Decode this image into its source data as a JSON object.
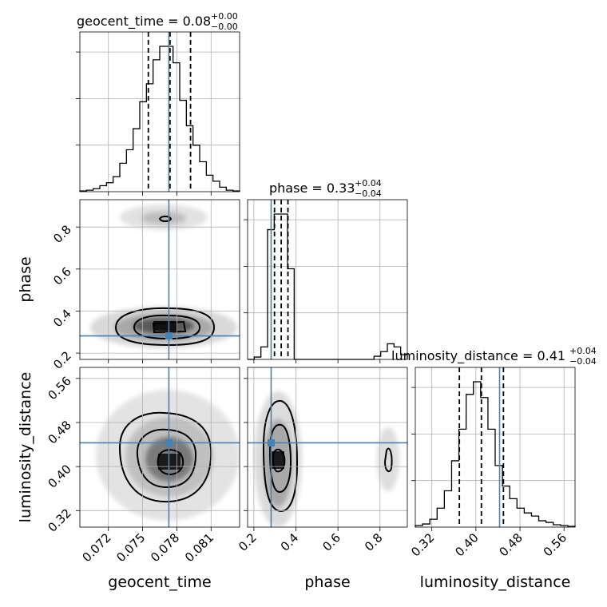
{
  "chart_data": {
    "type": "corner",
    "parameters": [
      "geocent_time",
      "phase",
      "luminosity_distance"
    ],
    "truth_color": "#4682b4",
    "truths": {
      "geocent_time": 0.0773,
      "phase": 0.282,
      "luminosity_distance": 0.443
    },
    "panel_titles": [
      {
        "label": "geocent_time = 0.08",
        "sup": "+0.00",
        "sub": "−0.00"
      },
      {
        "label": "phase = 0.33",
        "sup": "+0.04",
        "sub": "−0.04"
      },
      {
        "label": "luminosity_distance = 0.41",
        "sup": "+0.04",
        "sub": "−0.04"
      }
    ],
    "axes": {
      "geocent_time": {
        "range": [
          0.0695,
          0.0835
        ],
        "ticks": [
          0.072,
          0.075,
          0.078,
          0.081
        ],
        "tick_labels": [
          "0.072",
          "0.075",
          "0.078",
          "0.081"
        ]
      },
      "phase": {
        "range": [
          0.17,
          0.93
        ],
        "ticks": [
          0.2,
          0.4,
          0.6,
          0.8
        ],
        "tick_labels": [
          "0.2",
          "0.4",
          "0.6",
          "0.8"
        ]
      },
      "luminosity_distance": {
        "range": [
          0.29,
          0.58
        ],
        "ticks": [
          0.32,
          0.4,
          0.48,
          0.56
        ],
        "tick_labels": [
          "0.32",
          "0.40",
          "0.48",
          "0.56"
        ]
      }
    },
    "hist1d": {
      "geocent_time": {
        "bins": [
          0.0695,
          0.0835
        ],
        "counts": [
          0.5,
          1,
          2,
          4,
          6,
          10,
          19,
          28,
          42,
          60,
          72,
          88,
          97,
          97,
          86,
          61,
          44,
          31,
          20,
          11,
          7,
          3,
          1,
          0.5
        ],
        "quantiles": [
          0.0755,
          0.0774,
          0.0792
        ]
      },
      "phase": {
        "bins": [
          0.17,
          0.93
        ],
        "counts": [
          0,
          1.5,
          8,
          83,
          93,
          93,
          58,
          0,
          0,
          0,
          0,
          0,
          0,
          0,
          0,
          0,
          0,
          0,
          0,
          2,
          5,
          10,
          8,
          3
        ],
        "quantiles": [
          0.298,
          0.33,
          0.362
        ]
      },
      "luminosity_distance": {
        "bins": [
          0.29,
          0.58
        ],
        "counts": [
          1,
          2,
          5,
          12,
          23,
          42,
          62,
          84,
          92,
          82,
          62,
          39,
          26,
          18,
          12,
          9,
          7,
          4,
          3,
          1.5,
          1,
          0.5
        ],
        "quantiles": [
          0.37,
          0.41,
          0.45
        ]
      }
    },
    "axis_labels": {
      "x": [
        "geocent_time",
        "phase",
        "luminosity_distance"
      ],
      "y": [
        "phase",
        "luminosity_distance"
      ]
    }
  }
}
